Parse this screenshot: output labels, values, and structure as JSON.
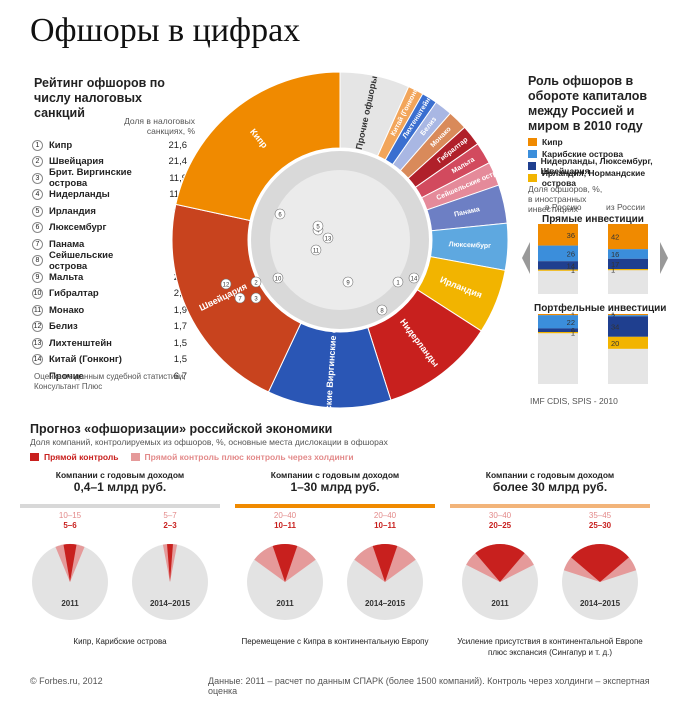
{
  "title": "Офшоры в цифрах",
  "colors": {
    "orange": "#f08a00",
    "red": "#c8201e",
    "blue": "#2a56b5",
    "yellow": "#f2b400",
    "lightblue": "#3b8edb",
    "navy": "#1f3f8f",
    "grey": "#e5e5e5",
    "pink": "#e59a9a"
  },
  "rating": {
    "title": "Рейтинг офшоров по числу налоговых санкций",
    "col_header": "Доля в налоговых санкциях, %",
    "rows": [
      {
        "n": "1",
        "name": "Кипр",
        "value": "21,6"
      },
      {
        "n": "2",
        "name": "Швейцария",
        "value": "21,4"
      },
      {
        "n": "3",
        "name": "Брит. Виргинские острова",
        "value": "11,9"
      },
      {
        "n": "4",
        "name": "Нидерланды",
        "value": "11,0"
      },
      {
        "n": "5",
        "name": "Ирландия",
        "value": "6,2"
      },
      {
        "n": "6",
        "name": "Люксембург",
        "value": "4,5"
      },
      {
        "n": "7",
        "name": "Панама",
        "value": "3,7"
      },
      {
        "n": "8",
        "name": "Сейшельские острова",
        "value": "2,3"
      },
      {
        "n": "9",
        "name": "Мальта",
        "value": "2,1"
      },
      {
        "n": "10",
        "name": "Гибралтар",
        "value": "2,0"
      },
      {
        "n": "11",
        "name": "Монако",
        "value": "1,9"
      },
      {
        "n": "12",
        "name": "Белиз",
        "value": "1,7"
      },
      {
        "n": "13",
        "name": "Лихтенштейн",
        "value": "1,5"
      },
      {
        "n": "14",
        "name": "Китай (Гонконг)",
        "value": "1,5"
      },
      {
        "n": "",
        "name": "Прочие",
        "value": "6,7"
      }
    ],
    "note": "Оценка по данным судебной статистики, Консультант Плюс"
  },
  "chart_data": [
    {
      "type": "pie",
      "title": "Рейтинг офшоров по числу налоговых санкций",
      "categories": [
        "Кипр",
        "Швейцария",
        "Британские Виргинские острова",
        "Нидерланды",
        "Ирландия",
        "Люксембург",
        "Панама",
        "Сейшельские острова",
        "Мальта",
        "Гибралтар",
        "Монако",
        "Белиз",
        "Лихтенштейн",
        "Китай (Гонконг)",
        "Прочие офшоры"
      ],
      "values": [
        21.6,
        21.4,
        11.9,
        11.0,
        6.2,
        4.5,
        3.7,
        2.3,
        2.1,
        2.0,
        1.9,
        1.7,
        1.5,
        1.5,
        6.7
      ],
      "colors": [
        "#f08a00",
        "#c8431e",
        "#2a56b5",
        "#c8201e",
        "#f2b400",
        "#5ea8e0",
        "#6d7fc4",
        "#e58a9a",
        "#d24a5e",
        "#b0202a",
        "#d98a5a",
        "#a9b7e3",
        "#3a6fd0",
        "#f2a55a",
        "#e5e5e5"
      ],
      "map_markers": [
        "1",
        "2",
        "3",
        "4",
        "5",
        "6",
        "7",
        "8",
        "9",
        "10",
        "11",
        "12",
        "13",
        "14"
      ]
    },
    {
      "type": "bar",
      "title": "Роль офшоров в обороте капиталов между Россией и миром в 2010 году",
      "subtitle": "Доля офшоров, % в иностранных инвестициях",
      "legend": [
        "Кипр",
        "Карибские острова",
        "Нидерланды, Люксембург, Швейцария",
        "Ирландия, Нормандские острова"
      ],
      "columns": [
        "в Россию",
        "из России"
      ],
      "groups": [
        {
          "name": "Прямые инвестиции",
          "series": [
            {
              "name": "Кипр",
              "values": [
                36,
                42
              ]
            },
            {
              "name": "Карибские острова",
              "values": [
                26,
                16
              ]
            },
            {
              "name": "Нидерланды, Люксембург, Швейцария",
              "values": [
                14,
                17
              ]
            },
            {
              "name": "Ирландия, Нормандские острова",
              "values": [
                1,
                1
              ]
            }
          ]
        },
        {
          "name": "Портфельные инвестиции",
          "series": [
            {
              "name": "Кипр",
              "values": [
                1,
                1
              ]
            },
            {
              "name": "Карибские острова",
              "values": [
                22,
                2
              ]
            },
            {
              "name": "Нидерланды, Люксембург, Швейцария",
              "values": [
                6,
                34
              ]
            },
            {
              "name": "Ирландия, Нормандские острова",
              "values": [
                1,
                20
              ]
            }
          ]
        }
      ],
      "source": "IMF CDIS, SPIS - 2010"
    },
    {
      "type": "pie",
      "title": "Прогноз «офшоризации» российской экономики",
      "subtitle": "Доля компаний, контролируемых из офшоров, %, основные места дислокации в офшорах",
      "legend": [
        "Прямой контроль",
        "Прямой контроль плюс контроль через холдинги"
      ],
      "groups": [
        {
          "header": "Компании с годовым доходом",
          "range": "0,4–1 млрд руб.",
          "years": [
            "2011",
            "2014–2015"
          ],
          "direct": [
            "5–6",
            "2–3"
          ],
          "total": [
            "10–15",
            "5–7"
          ],
          "note": "Кипр, Карибские острова"
        },
        {
          "header": "Компании с годовым доходом",
          "range": "1–30 млрд руб.",
          "years": [
            "2011",
            "2014–2015"
          ],
          "direct": [
            "10–11",
            "10–11"
          ],
          "total": [
            "20–40",
            "20–40"
          ],
          "note": "Перемещение с Кипра в континентальную Европу"
        },
        {
          "header": "Компании с годовым доходом",
          "range": "более 30 млрд руб.",
          "years": [
            "2011",
            "2014–2015"
          ],
          "direct": [
            "20–25",
            "25–30"
          ],
          "total": [
            "30–40",
            "35–45"
          ],
          "note": "Усиление присутствия в континентальной Европе плюс экспансия (Сингапур и т. д.)"
        }
      ]
    }
  ],
  "role": {
    "title": "Роль офшоров в обороте капиталов между Россией и миром в 2010 году",
    "legend": [
      "Кипр",
      "Карибские острова",
      "Нидерланды, Люксембург, Швейцария",
      "Ирландия, Нормандские острова"
    ],
    "subtitle": "Доля офшоров, %, в иностранных инвестициях",
    "col_in": "в Россию",
    "col_out": "из России",
    "direct": "Прямые инвестиции",
    "portfolio": "Портфельные инвестиции",
    "source": "IMF CDIS, SPIS - 2010"
  },
  "forecast": {
    "title": "Прогноз «офшоризации» российской экономики",
    "subtitle": "Доля компаний, контролируемых из офшоров, %, основные места дислокации в офшорах",
    "legend": [
      "Прямой контроль",
      "Прямой контроль плюс контроль через холдинги"
    ]
  },
  "footer": {
    "left": "© Forbes.ru, 2012",
    "right": "Данные: 2011 – расчет по данным СПАРК (более 1500 компаний). Контроль через холдинги – экспертная оценка"
  }
}
